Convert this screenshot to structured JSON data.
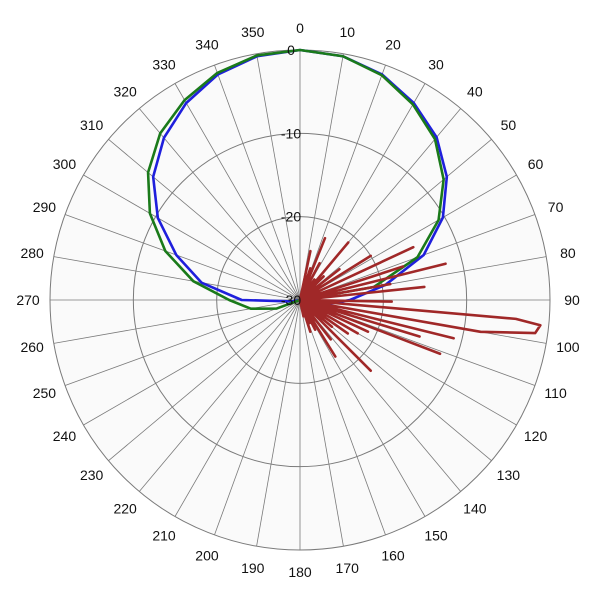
{
  "chart_data": {
    "type": "line",
    "projection": "polar",
    "title": "",
    "angle_direction": "clockwise",
    "angle_zero": "top",
    "angle_ticks": [
      0,
      10,
      20,
      30,
      40,
      50,
      60,
      70,
      80,
      90,
      100,
      110,
      120,
      130,
      140,
      150,
      160,
      170,
      180,
      190,
      200,
      210,
      220,
      230,
      240,
      250,
      260,
      270,
      280,
      290,
      300,
      310,
      320,
      330,
      340,
      350
    ],
    "angle_tick_labels": [
      "0",
      "10",
      "20",
      "30",
      "40",
      "50",
      "60",
      "70",
      "80",
      "90",
      "100",
      "110",
      "120",
      "130",
      "140",
      "150",
      "160",
      "170",
      "180",
      "190",
      "200",
      "210",
      "220",
      "230",
      "240",
      "250",
      "260",
      "270",
      "280",
      "290",
      "300",
      "310",
      "320",
      "330",
      "340",
      "350"
    ],
    "radial_range": [
      -30,
      0
    ],
    "radial_ticks": [
      0,
      -10,
      -20,
      -30
    ],
    "radial_tick_labels": [
      "0",
      "-10",
      "-20",
      "-30"
    ],
    "grid": true,
    "legend": "none",
    "series": [
      {
        "color": "#1f1fdc",
        "angles": [
          0,
          10,
          20,
          30,
          40,
          50,
          60,
          70,
          80,
          90,
          100,
          110,
          120,
          130,
          140,
          150,
          160,
          170,
          180,
          190,
          200,
          210,
          220,
          230,
          240,
          250,
          260,
          270,
          280,
          290,
          300,
          310,
          320,
          330,
          340,
          350,
          360
        ],
        "values": [
          0,
          -0.3,
          -1.2,
          -2.7,
          -4.5,
          -7,
          -10.2,
          -14.2,
          -19.6,
          -24,
          -27,
          -30,
          -30,
          -30,
          -30,
          -30,
          -30,
          -30,
          -30,
          -30,
          -30,
          -30,
          -30,
          -30,
          -30,
          -30,
          -29,
          -23,
          -18,
          -14.2,
          -10.3,
          -7,
          -4.6,
          -2.7,
          -1.2,
          -0.3,
          0
        ]
      },
      {
        "color": "#1a7a1a",
        "angles": [
          0,
          10,
          20,
          30,
          40,
          50,
          60,
          70,
          80,
          90,
          100,
          110,
          120,
          130,
          140,
          150,
          160,
          170,
          180,
          190,
          200,
          210,
          220,
          230,
          240,
          250,
          260,
          270,
          280,
          290,
          300,
          310,
          320,
          330,
          340,
          350,
          360
        ],
        "values": [
          0,
          -0.3,
          -1.3,
          -2.9,
          -4.8,
          -7.5,
          -10.8,
          -15,
          -21,
          -30,
          -30,
          -30,
          -30,
          -30,
          -30,
          -30,
          -30,
          -30,
          -30,
          -30,
          -30,
          -30,
          -30,
          -30,
          -30,
          -27,
          -24,
          -21.5,
          -17,
          -12.8,
          -9.2,
          -6.2,
          -3.9,
          -2.3,
          -1,
          -0.2,
          0
        ]
      },
      {
        "color": "#a02828",
        "angles": [
          0,
          5,
          10,
          12,
          15,
          18,
          20,
          22,
          25,
          28,
          32,
          35,
          38,
          40,
          42,
          45,
          48,
          52,
          55,
          58,
          62,
          65,
          68,
          72,
          74,
          76,
          78,
          80,
          82,
          84,
          86,
          88,
          90,
          91,
          93,
          95,
          96,
          98,
          100,
          102,
          104,
          105,
          107,
          109,
          111,
          113,
          115,
          118,
          120,
          122,
          125,
          128,
          130,
          133,
          135,
          138,
          142,
          145,
          148,
          150,
          153,
          155,
          158,
          160,
          162,
          165,
          168,
          170,
          175,
          180,
          200,
          250,
          280,
          300,
          330,
          360
        ],
        "values": [
          -30,
          -30,
          -30,
          -24,
          -30,
          -26,
          -30,
          -22,
          -30,
          -25,
          -30,
          -27,
          -30,
          -21,
          -30,
          -26,
          -30,
          -24,
          -30,
          -20,
          -30,
          -15,
          -30,
          -17,
          -30,
          -12,
          -30,
          -19,
          -30,
          -15,
          -30,
          -28,
          -30,
          -19,
          -30,
          -4,
          -1,
          -1.5,
          -8,
          -30,
          -11,
          -30,
          -15,
          -30,
          -12,
          -30,
          -21,
          -30,
          -22,
          -30,
          -23,
          -30,
          -25,
          -30,
          -18,
          -30,
          -24,
          -30,
          -22,
          -30,
          -26,
          -30,
          -27,
          -30,
          -26,
          -30,
          -28,
          -30,
          -30,
          -30,
          -30,
          -30,
          -30,
          -30,
          -30,
          -30
        ]
      }
    ]
  }
}
